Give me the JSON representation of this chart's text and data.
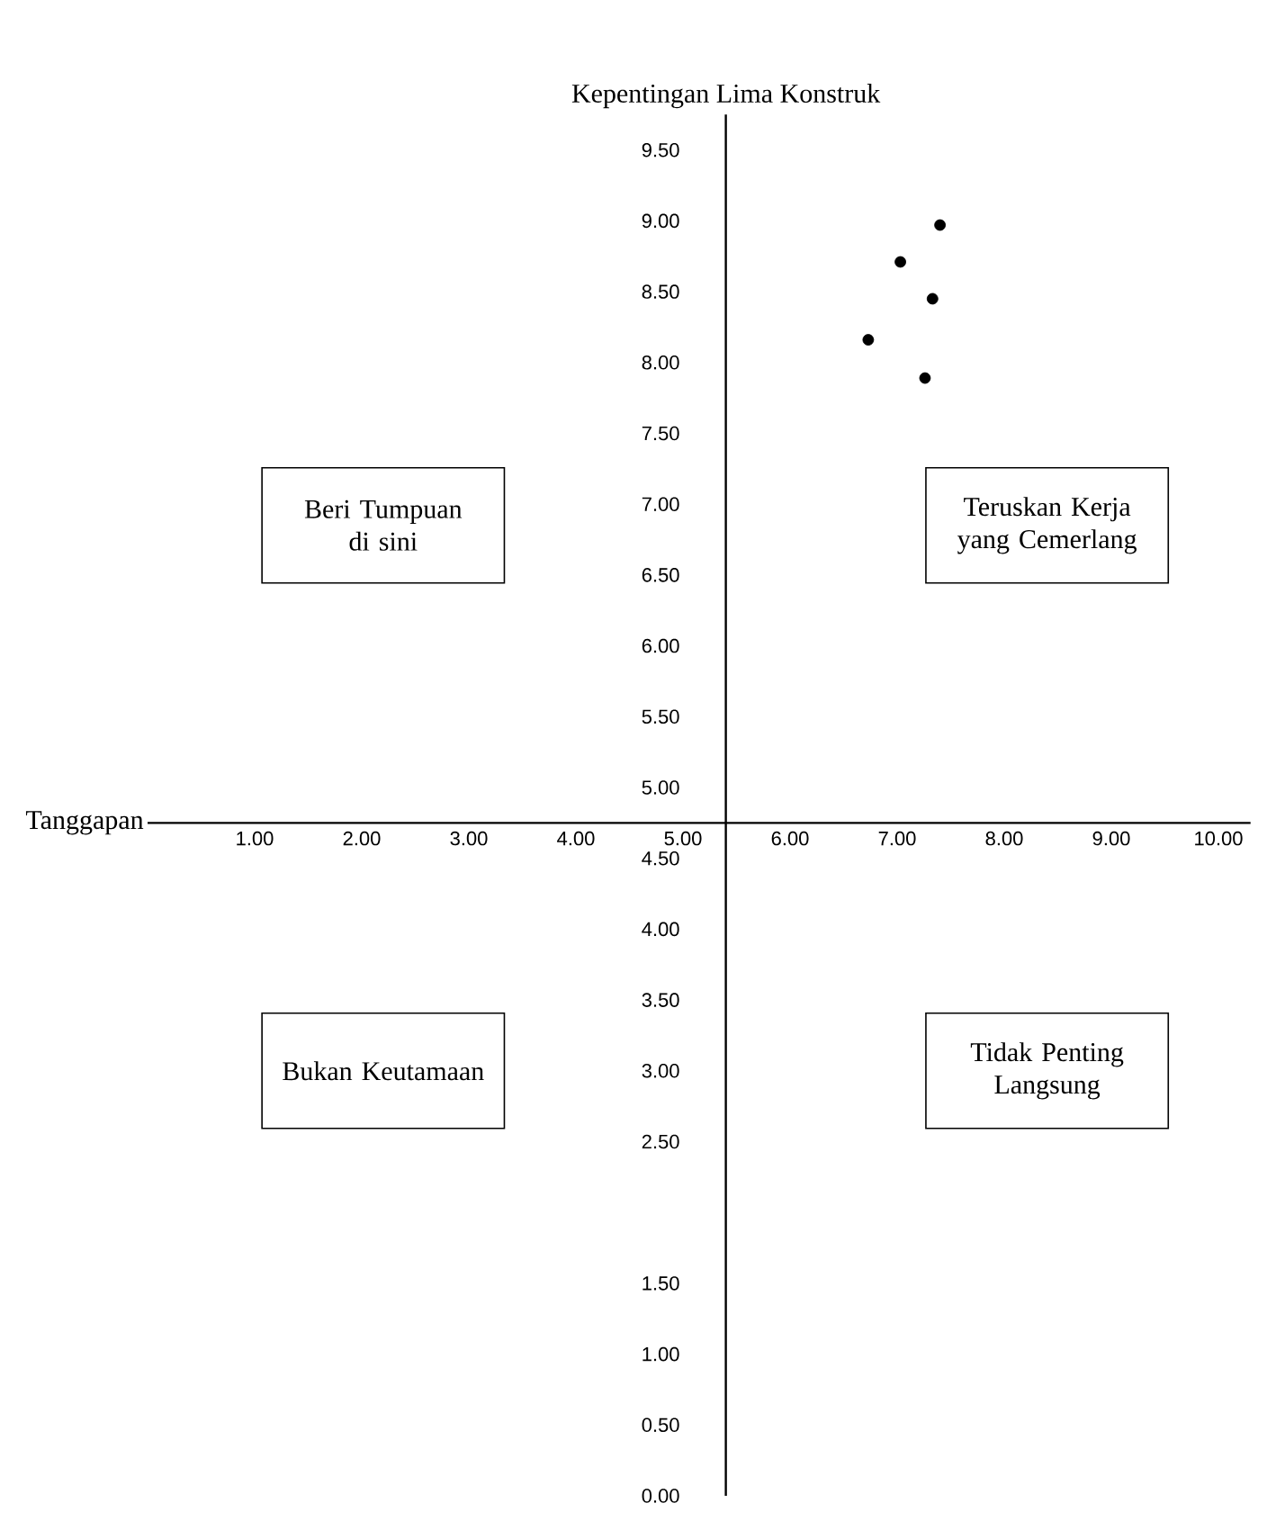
{
  "chart_data": {
    "type": "scatter",
    "ylabel": "Kepentingan Lima Konstruk",
    "xlabel": "Tanggapan",
    "x": [
      7.4,
      7.03,
      7.33,
      6.73,
      7.26
    ],
    "values": [
      8.97,
      8.71,
      8.45,
      8.16,
      7.89
    ],
    "color": "#000000",
    "marker": "circle",
    "xlim": [
      0,
      10.3
    ],
    "ylim": [
      0,
      9.75
    ],
    "xticks": [
      {
        "value": 1,
        "label": "1.00"
      },
      {
        "value": 2,
        "label": "2.00"
      },
      {
        "value": 3,
        "label": "3.00"
      },
      {
        "value": 4,
        "label": "4.00"
      },
      {
        "value": 5,
        "label": "5.00"
      },
      {
        "value": 6,
        "label": "6.00"
      },
      {
        "value": 7,
        "label": "7.00"
      },
      {
        "value": 8,
        "label": "8.00"
      },
      {
        "value": 9,
        "label": "9.00"
      },
      {
        "value": 10,
        "label": "10.00"
      }
    ],
    "yticks": [
      {
        "value": 0,
        "label": "0.00"
      },
      {
        "value": 0.5,
        "label": "0.50"
      },
      {
        "value": 1,
        "label": "1.00"
      },
      {
        "value": 1.5,
        "label": "1.50"
      },
      {
        "value": 2.5,
        "label": "2.50"
      },
      {
        "value": 3,
        "label": "3.00"
      },
      {
        "value": 3.5,
        "label": "3.50"
      },
      {
        "value": 4,
        "label": "4.00"
      },
      {
        "value": 4.5,
        "label": "4.50"
      },
      {
        "value": 5,
        "label": "5.00"
      },
      {
        "value": 5.5,
        "label": "5.50"
      },
      {
        "value": 6,
        "label": "6.00"
      },
      {
        "value": 6.5,
        "label": "6.50"
      },
      {
        "value": 7,
        "label": "7.00"
      },
      {
        "value": 7.5,
        "label": "7.50"
      },
      {
        "value": 8,
        "label": "8.00"
      },
      {
        "value": 8.5,
        "label": "8.50"
      },
      {
        "value": 9,
        "label": "9.00"
      },
      {
        "value": 9.5,
        "label": "9.50"
      }
    ],
    "annotations": [
      "Beri Tumpuan di sini",
      "Teruskan Kerja yang Cemerlang",
      "Bukan Keutamaan",
      "Tidak Penting Langsung"
    ]
  }
}
